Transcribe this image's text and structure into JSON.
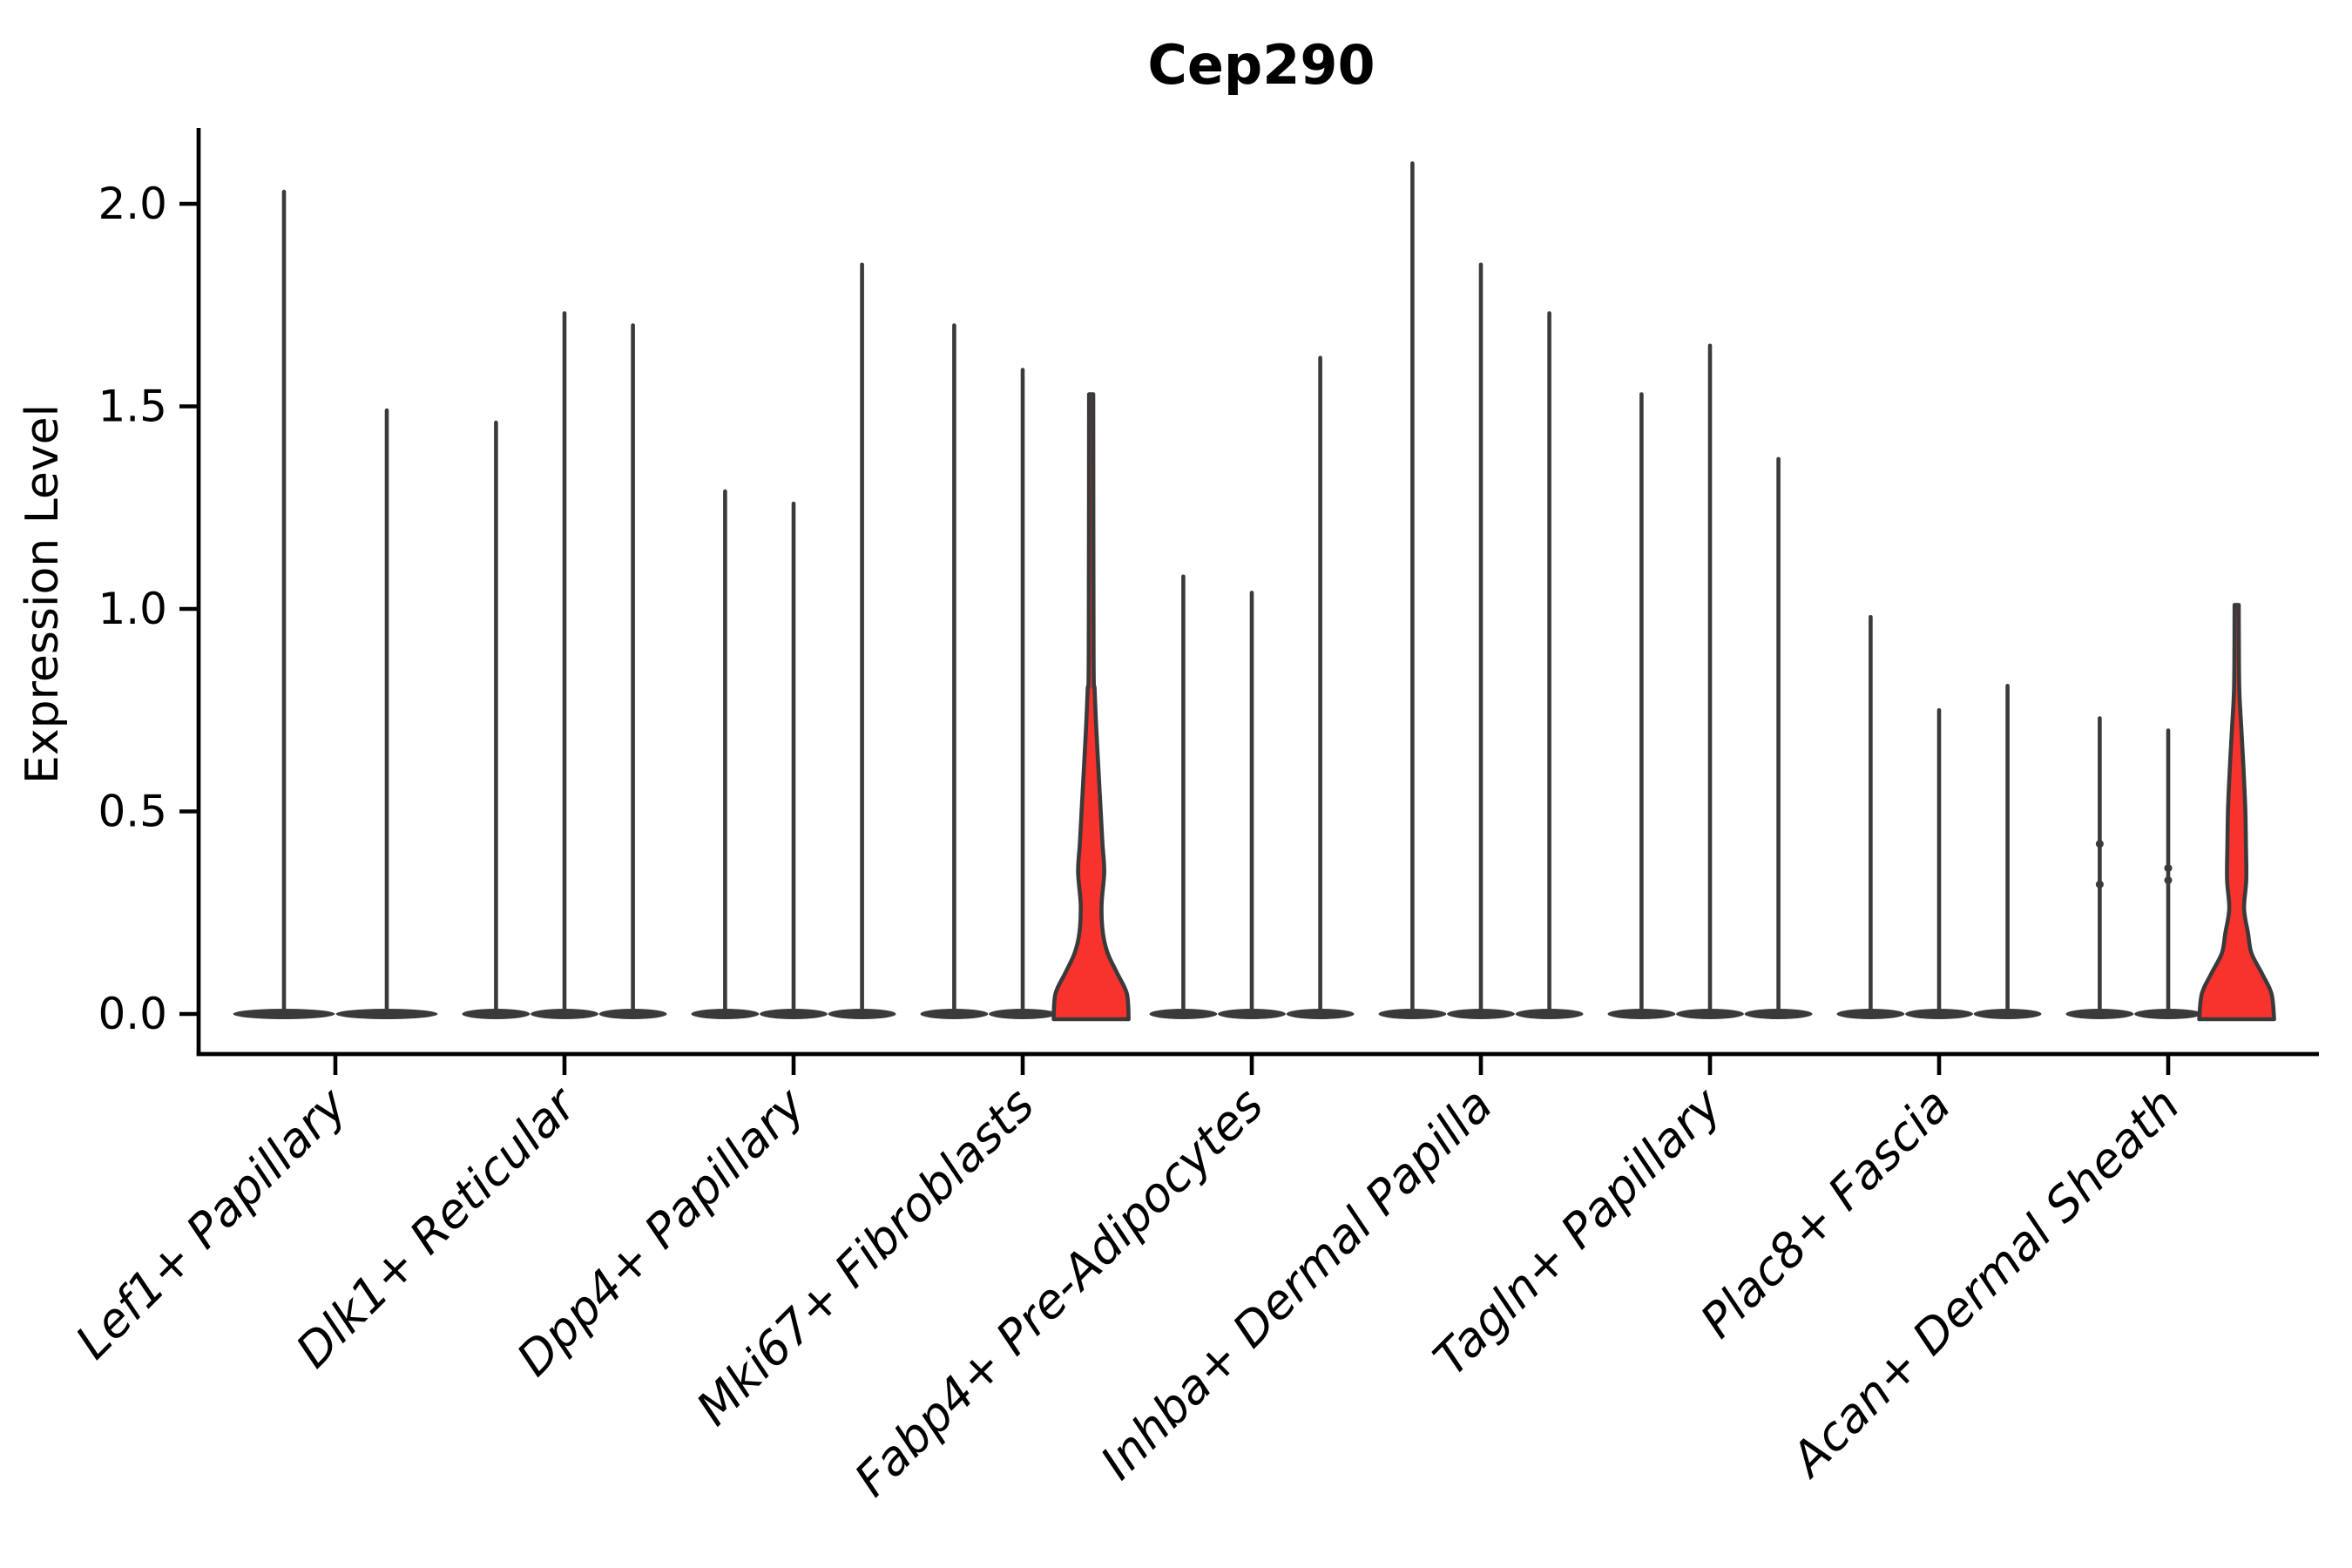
{
  "chart_data": {
    "type": "violin",
    "title": "Cep290",
    "ylabel": "Expression Level",
    "xlabel": "",
    "grid": false,
    "legend": "none",
    "ylim": [
      -0.11,
      2.29
    ],
    "yticks": [
      {
        "label": "2.0",
        "value": 2.0
      },
      {
        "label": "1.5",
        "value": 1.5
      },
      {
        "label": "1.0",
        "value": 1.0
      },
      {
        "label": "0.5",
        "value": 0.5
      },
      {
        "label": "0.0",
        "value": 0.0
      }
    ],
    "categories": [
      "Lef1+ Papillary",
      "Dlk1+ Reticular",
      "Dpp4+ Papillary",
      "Mki67+ Fibroblasts",
      "Fabp4+ Pre-Adipocytes",
      "Inhba+ Dermal Papilla",
      "Tagln+ Papillary",
      "Plac8+ Fascia",
      "Acan+ Dermal Sheath"
    ],
    "groups": [
      {
        "label": "Lef1+ Papillary",
        "violins": [
          {
            "max": 2.03
          },
          {
            "max": 1.49
          }
        ]
      },
      {
        "label": "Dlk1+ Reticular",
        "violins": [
          {
            "max": 1.46
          },
          {
            "max": 1.73
          },
          {
            "max": 1.7
          }
        ]
      },
      {
        "label": "Dpp4+ Papillary",
        "violins": [
          {
            "max": 1.29
          },
          {
            "max": 1.26
          },
          {
            "max": 1.85
          }
        ]
      },
      {
        "label": "Mki67+ Fibroblasts",
        "violins": [
          {
            "max": 1.7
          },
          {
            "max": 1.59
          },
          {
            "max": 1.53,
            "highlight": true,
            "profile": [
              [
                0,
                43
              ],
              [
                0.05,
                41
              ],
              [
                0.1,
                30
              ],
              [
                0.15,
                19
              ],
              [
                0.2,
                13.5
              ],
              [
                0.27,
                12
              ],
              [
                0.35,
                15
              ],
              [
                0.42,
                13
              ],
              [
                0.5,
                11
              ],
              [
                0.6,
                8.5
              ],
              [
                0.7,
                6
              ],
              [
                0.8,
                4
              ],
              [
                0.88,
                2.8
              ],
              [
                1.53,
                2.4
              ]
            ]
          }
        ]
      },
      {
        "label": "Fabp4+ Pre-Adipocytes",
        "violins": [
          {
            "max": 1.08
          },
          {
            "max": 1.04
          },
          {
            "max": 1.62
          }
        ]
      },
      {
        "label": "Inhba+ Dermal Papilla",
        "violins": [
          {
            "max": 2.1
          },
          {
            "max": 1.85
          },
          {
            "max": 1.73
          }
        ]
      },
      {
        "label": "Tagln+ Papillary",
        "violins": [
          {
            "max": 1.53
          },
          {
            "max": 1.65
          },
          {
            "max": 1.37
          }
        ]
      },
      {
        "label": "Plac8+ Fascia",
        "violins": [
          {
            "max": 0.98
          },
          {
            "max": 0.75
          },
          {
            "max": 0.81
          }
        ]
      },
      {
        "label": "Acan+ Dermal Sheath",
        "violins": [
          {
            "max": 0.73,
            "dots": [
              0.42,
              0.32
            ]
          },
          {
            "max": 0.7,
            "dots": [
              0.36,
              0.33
            ]
          },
          {
            "max": 1.01,
            "highlight": true,
            "profile": [
              [
                0,
                43
              ],
              [
                0.05,
                40
              ],
              [
                0.1,
                29
              ],
              [
                0.15,
                17
              ],
              [
                0.2,
                13
              ],
              [
                0.26,
                8.5
              ],
              [
                0.33,
                11
              ],
              [
                0.41,
                10.7
              ],
              [
                0.5,
                10
              ],
              [
                0.6,
                8
              ],
              [
                0.7,
                5.5
              ],
              [
                0.79,
                3.2
              ],
              [
                0.88,
                2.6
              ],
              [
                1.01,
                2.4
              ]
            ]
          }
        ]
      }
    ],
    "colors": {
      "violin_stroke": "#3A3A3A",
      "highlight_fill": "#F8322C",
      "axis": "#000000",
      "text": "#000000",
      "background": "#FFFFFF"
    }
  }
}
